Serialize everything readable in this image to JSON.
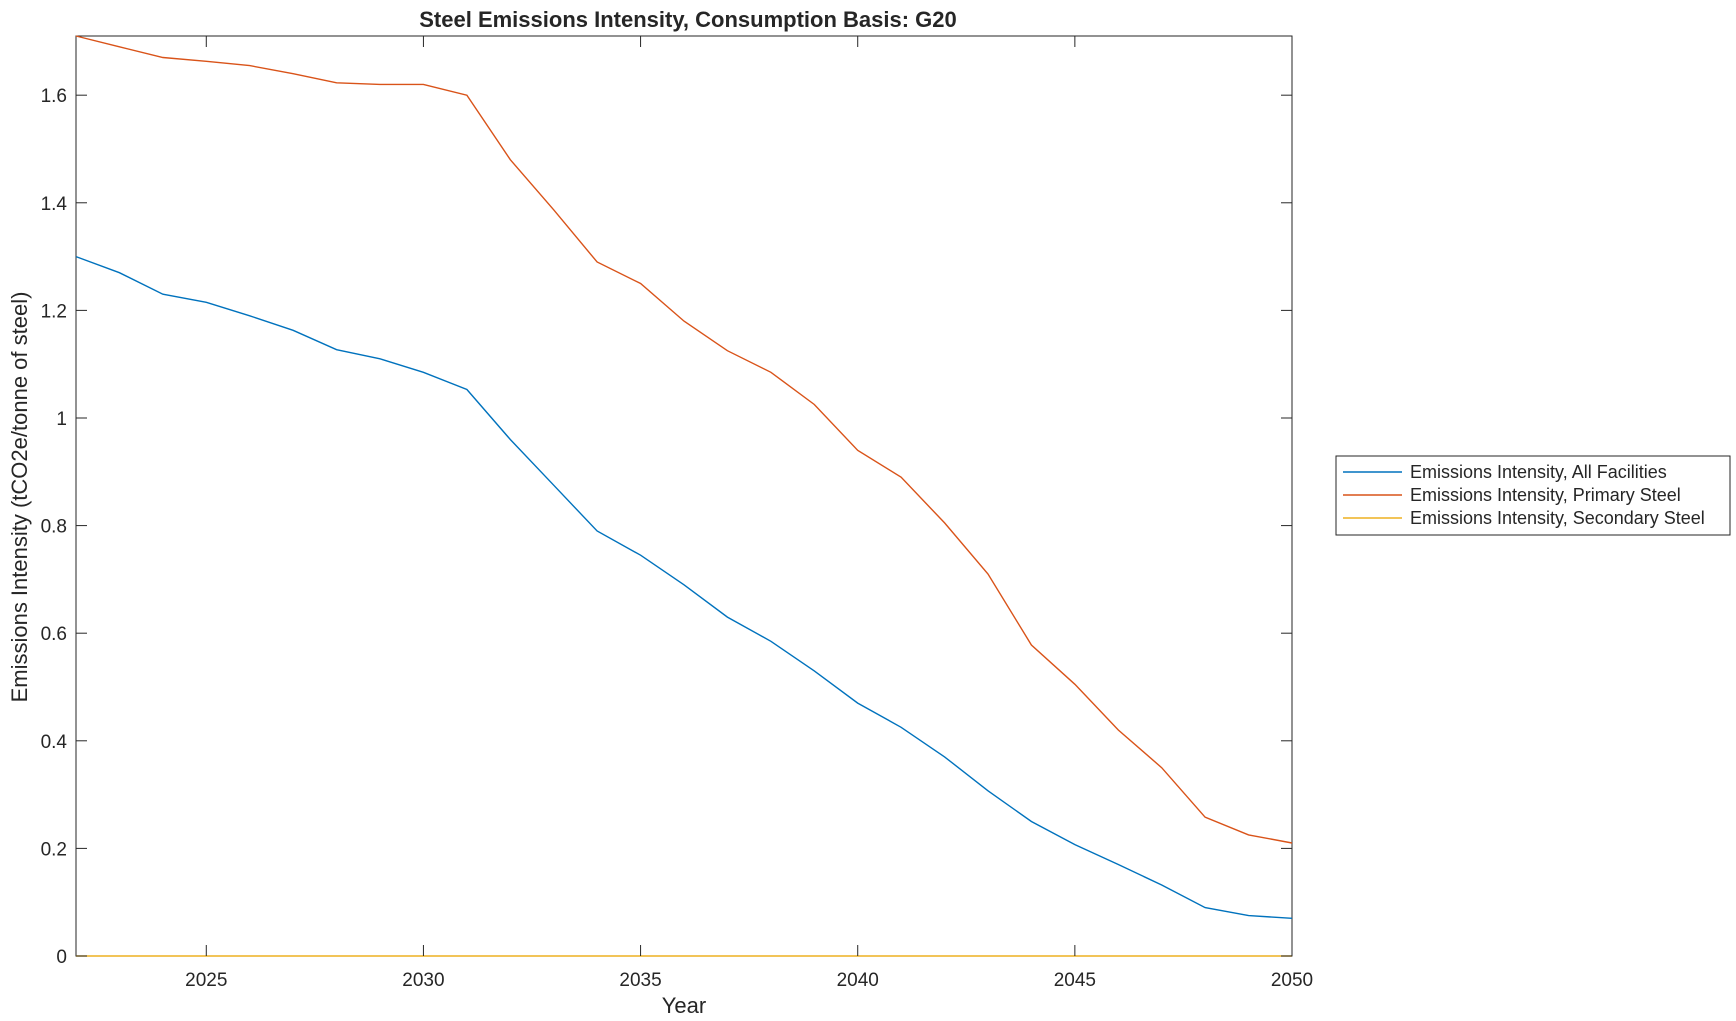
{
  "chart_data": {
    "type": "line",
    "title": "Steel Emissions Intensity, Consumption Basis: G20",
    "xlabel": "Year",
    "ylabel": "Emissions Intensity (tCO2e/tonne of steel)",
    "xlim": [
      2022,
      2050
    ],
    "ylim": [
      0,
      1.71
    ],
    "xticks": [
      "2025",
      "2030",
      "2035",
      "2040",
      "2045",
      "2050"
    ],
    "yticks": [
      "0",
      "0.2",
      "0.4",
      "0.6",
      "0.8",
      "1",
      "1.2",
      "1.4",
      "1.6"
    ],
    "grid": false,
    "legend_position": "outside right",
    "x": [
      2022,
      2023,
      2024,
      2025,
      2026,
      2027,
      2028,
      2029,
      2030,
      2031,
      2032,
      2033,
      2034,
      2035,
      2036,
      2037,
      2038,
      2039,
      2040,
      2041,
      2042,
      2043,
      2044,
      2045,
      2046,
      2047,
      2048,
      2049,
      2050
    ],
    "series": [
      {
        "name": "Emissions Intensity, All Facilities",
        "color": "#0072BD",
        "values": [
          1.3,
          1.27,
          1.23,
          1.215,
          1.19,
          1.163,
          1.127,
          1.11,
          1.085,
          1.053,
          0.96,
          0.875,
          0.79,
          0.745,
          0.69,
          0.63,
          0.585,
          0.53,
          0.47,
          0.425,
          0.37,
          0.307,
          0.25,
          0.207,
          0.17,
          0.132,
          0.09,
          0.075,
          0.07
        ]
      },
      {
        "name": "Emissions Intensity, Primary Steel",
        "color": "#D95319",
        "values": [
          1.71,
          1.69,
          1.67,
          1.663,
          1.655,
          1.64,
          1.623,
          1.62,
          1.62,
          1.6,
          1.48,
          1.387,
          1.29,
          1.25,
          1.18,
          1.125,
          1.085,
          1.025,
          0.94,
          0.89,
          0.805,
          0.71,
          0.578,
          0.505,
          0.42,
          0.35,
          0.258,
          0.225,
          0.21
        ]
      },
      {
        "name": "Emissions Intensity, Secondary Steel",
        "color": "#EDB120",
        "values": [
          0,
          0,
          0,
          0,
          0,
          0,
          0,
          0,
          0,
          0,
          0,
          0,
          0,
          0,
          0,
          0,
          0,
          0,
          0,
          0,
          0,
          0,
          0,
          0,
          0,
          0,
          0,
          0,
          0
        ]
      }
    ]
  }
}
